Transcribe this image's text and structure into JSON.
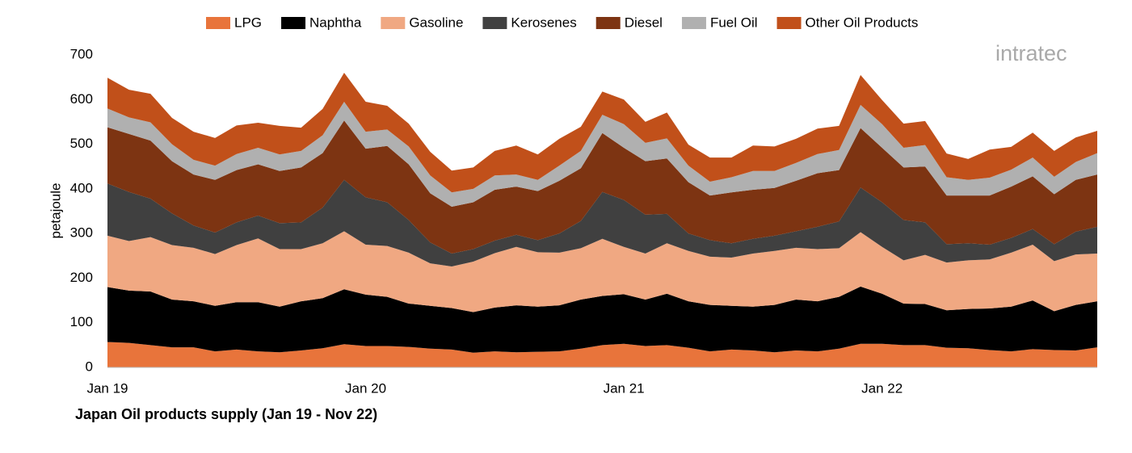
{
  "chart_data": {
    "type": "stacked-area",
    "title": "Japan Oil products supply (Jan 19 - Nov 22)",
    "y_label": "petajoule",
    "watermark": "intratec",
    "categories": [
      "Jan 19",
      null,
      null,
      null,
      null,
      null,
      null,
      null,
      null,
      null,
      null,
      null,
      "Jan 20",
      null,
      null,
      null,
      null,
      null,
      null,
      null,
      null,
      null,
      null,
      null,
      "Jan 21",
      null,
      null,
      null,
      null,
      null,
      null,
      null,
      null,
      null,
      null,
      null,
      "Jan 22",
      null,
      null,
      null,
      null,
      null,
      null,
      null,
      null,
      null,
      null
    ],
    "ylim": [
      0,
      700
    ],
    "yticks": [
      0,
      100,
      200,
      300,
      400,
      500,
      600,
      700
    ],
    "grid": false,
    "legend": "top",
    "series": [
      {
        "name": "LPG",
        "color": "#e8743b",
        "values": [
          57,
          55,
          50,
          45,
          45,
          36,
          40,
          36,
          34,
          38,
          43,
          52,
          48,
          48,
          46,
          42,
          40,
          33,
          36,
          34,
          35,
          36,
          42,
          50,
          53,
          48,
          50,
          44,
          36,
          40,
          38,
          34,
          38,
          36,
          42,
          53,
          53,
          50,
          50,
          44,
          43,
          39,
          36,
          41,
          39,
          38,
          45
        ]
      },
      {
        "name": "Naphtha",
        "color": "#000000",
        "values": [
          123,
          117,
          120,
          107,
          103,
          102,
          106,
          110,
          102,
          110,
          112,
          123,
          115,
          110,
          97,
          96,
          93,
          91,
          98,
          105,
          101,
          103,
          110,
          110,
          111,
          104,
          115,
          104,
          104,
          98,
          98,
          106,
          114,
          112,
          116,
          128,
          112,
          93,
          92,
          84,
          88,
          93,
          100,
          109,
          87,
          102,
          103
        ]
      },
      {
        "name": "Gasoline",
        "color": "#f0a882",
        "values": [
          115,
          111,
          122,
          122,
          120,
          116,
          128,
          143,
          129,
          117,
          123,
          130,
          112,
          114,
          114,
          95,
          93,
          113,
          122,
          131,
          122,
          118,
          115,
          128,
          106,
          103,
          113,
          113,
          108,
          108,
          119,
          121,
          116,
          117,
          109,
          122,
          105,
          97,
          110,
          107,
          109,
          110,
          121,
          125,
          112,
          113,
          107
        ]
      },
      {
        "name": "Kerosenes",
        "color": "#404040",
        "values": [
          117,
          110,
          86,
          71,
          50,
          48,
          51,
          51,
          58,
          60,
          80,
          115,
          106,
          98,
          73,
          47,
          29,
          28,
          28,
          27,
          27,
          43,
          61,
          105,
          105,
          87,
          66,
          39,
          37,
          32,
          33,
          34,
          37,
          50,
          60,
          100,
          100,
          90,
          73,
          41,
          38,
          33,
          33,
          35,
          38,
          51,
          60
        ]
      },
      {
        "name": "Diesel",
        "color": "#7d3412",
        "values": [
          126,
          130,
          130,
          117,
          114,
          118,
          117,
          115,
          117,
          123,
          122,
          133,
          109,
          126,
          125,
          110,
          105,
          105,
          114,
          108,
          110,
          118,
          118,
          132,
          117,
          120,
          124,
          115,
          100,
          114,
          110,
          107,
          113,
          120,
          115,
          133,
          122,
          118,
          125,
          109,
          107,
          110,
          115,
          118,
          112,
          116,
          117
        ]
      },
      {
        "name": "Fuel Oil",
        "color": "#b0b0b0",
        "values": [
          42,
          37,
          41,
          38,
          33,
          32,
          36,
          37,
          37,
          37,
          40,
          42,
          38,
          37,
          40,
          40,
          32,
          30,
          32,
          27,
          25,
          34,
          39,
          41,
          53,
          41,
          45,
          37,
          31,
          34,
          42,
          38,
          40,
          43,
          45,
          52,
          53,
          44,
          48,
          41,
          35,
          40,
          38,
          42,
          39,
          40,
          48
        ]
      },
      {
        "name": "Other Oil Products",
        "color": "#c1501a",
        "values": [
          69,
          62,
          64,
          59,
          63,
          62,
          64,
          56,
          64,
          52,
          59,
          65,
          67,
          53,
          51,
          53,
          49,
          48,
          55,
          65,
          57,
          60,
          54,
          52,
          55,
          47,
          58,
          47,
          54,
          44,
          57,
          55,
          54,
          57,
          54,
          67,
          54,
          54,
          54,
          53,
          47,
          63,
          51,
          56,
          58,
          55,
          50
        ]
      }
    ]
  }
}
